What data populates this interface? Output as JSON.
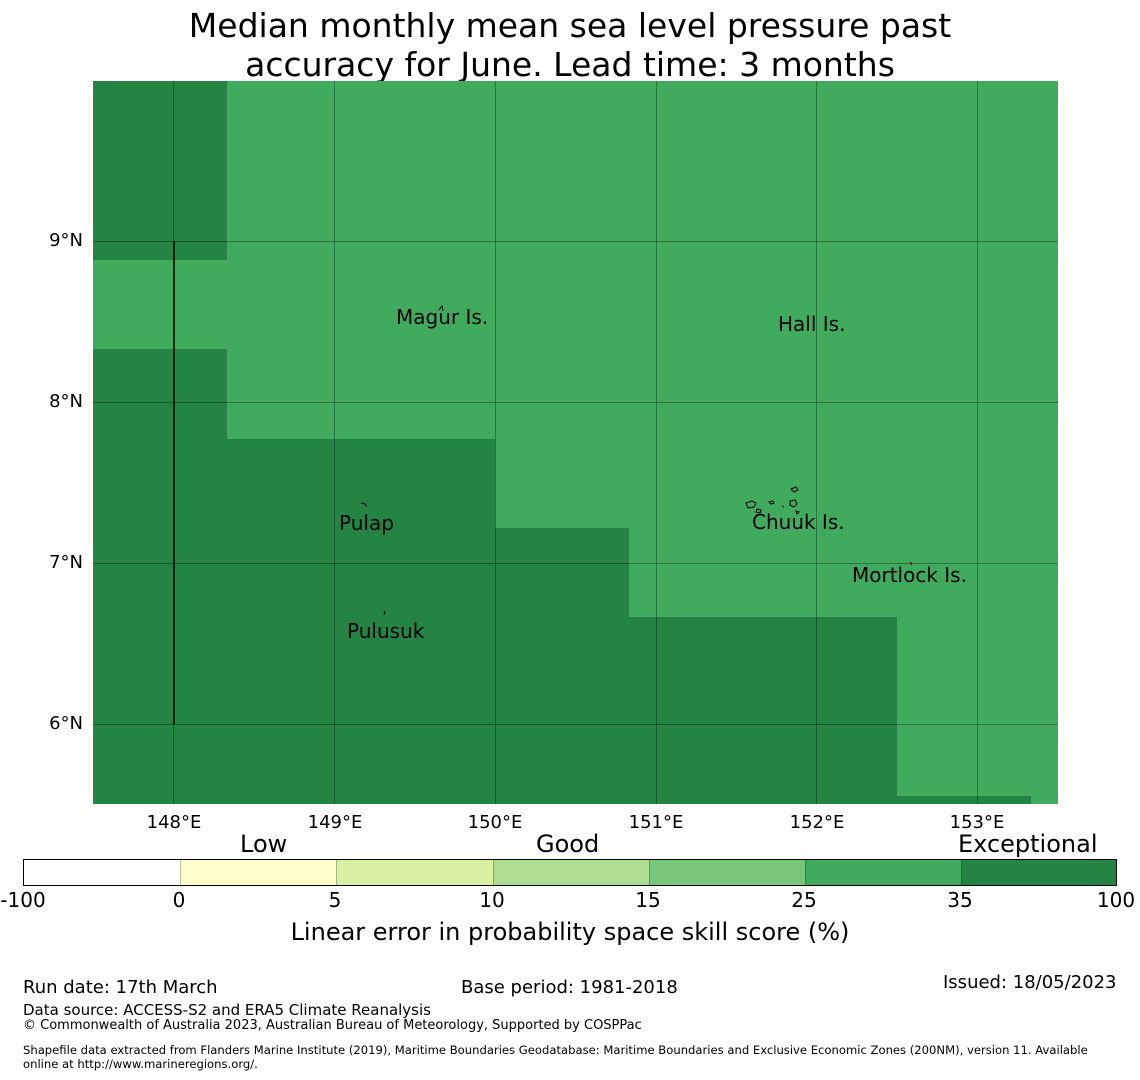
{
  "title": {
    "line1": "Median monthly mean sea level pressure past",
    "line2": "accuracy for June. Lead time: 3 months"
  },
  "map": {
    "colors": {
      "good_high": "#41ab5d",
      "exceptional": "#238443"
    },
    "latitude_labels": [
      "9°N",
      "8°N",
      "7°N",
      "6°N"
    ],
    "longitude_labels": [
      "148°E",
      "149°E",
      "150°E",
      "151°E",
      "152°E",
      "153°E"
    ],
    "places": [
      "Magur Is.",
      "Hall Is.",
      "Pulap",
      "Chuuk Is.",
      "Mortlock Is.",
      "Pulusuk"
    ]
  },
  "colorbar": {
    "categories": [
      "Low",
      "Good",
      "Exceptional"
    ],
    "ticks": [
      "-100",
      "0",
      "5",
      "10",
      "15",
      "25",
      "35",
      "100"
    ],
    "colors": [
      "#ffffff",
      "#ffffcc",
      "#d9f0a3",
      "#addd8e",
      "#78c679",
      "#41ab5d",
      "#238443"
    ],
    "label": "Linear error in probability space skill score (%)"
  },
  "footer": {
    "run_date": "Run date: 17th March",
    "base_period": "Base period: 1981-2018",
    "issued": "Issued: 18/05/2023",
    "data_source": "Data source: ACCESS-S2 and ERA5 Climate Reanalysis",
    "copyright": "© Commonwealth of Australia 2023, Australian Bureau of Meteorology, Supported by COSPPac",
    "shapefile_line1": "Shapefile data extracted from Flanders Marine Institute (2019), Maritime Boundaries Geodatabase: Maritime Boundaries and Exclusive Economic Zones (200NM), version 11. Available",
    "shapefile_line2": "online at http://www.marineregions.org/."
  }
}
